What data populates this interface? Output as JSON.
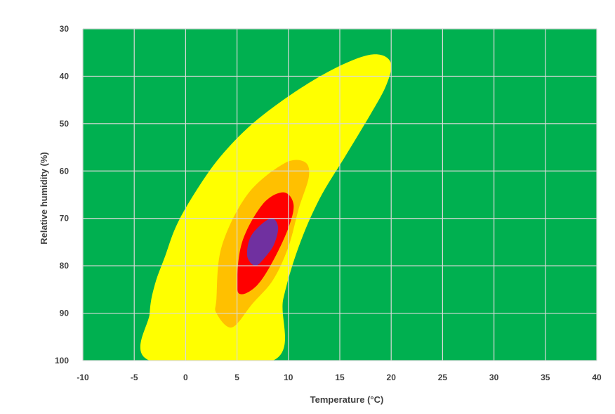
{
  "chart_data": {
    "type": "heatmap",
    "title": "",
    "xlabel": "Temperature (°C)",
    "ylabel": "Relative humidity (%)",
    "xlim": [
      -10,
      40
    ],
    "ylim": [
      30,
      100
    ],
    "y_inverted": true,
    "grid": true,
    "x_ticks": [
      "-10",
      "-5",
      "0",
      "5",
      "10",
      "15",
      "20",
      "25",
      "30",
      "35",
      "40"
    ],
    "y_ticks": [
      "30",
      "40",
      "50",
      "60",
      "70",
      "80",
      "90",
      "100"
    ],
    "background_color": "#00b050",
    "regions": [
      {
        "color": "#ffff00",
        "boundary": [
          [
            -3.5,
            100
          ],
          [
            -3.5,
            90
          ],
          [
            -3,
            84
          ],
          [
            -2,
            78
          ],
          [
            -1,
            72
          ],
          [
            0.5,
            66
          ],
          [
            3,
            58
          ],
          [
            6,
            51
          ],
          [
            9.5,
            45
          ],
          [
            13.5,
            39.5
          ],
          [
            17,
            36
          ],
          [
            19,
            35.5
          ],
          [
            20,
            37.5
          ],
          [
            19.5,
            42
          ],
          [
            18,
            48
          ],
          [
            15.5,
            57
          ],
          [
            13,
            66
          ],
          [
            11,
            76
          ],
          [
            9.5,
            87
          ],
          [
            8.5,
            100
          ]
        ]
      },
      {
        "color": "#ffc000",
        "boundary": [
          [
            3,
            87
          ],
          [
            3.5,
            76
          ],
          [
            6,
            65
          ],
          [
            9.5,
            58.5
          ],
          [
            11.5,
            58
          ],
          [
            12,
            61
          ],
          [
            11,
            68
          ],
          [
            10,
            76
          ],
          [
            8.5,
            83
          ],
          [
            6.5,
            88
          ],
          [
            4.5,
            93
          ],
          [
            3,
            90
          ]
        ]
      },
      {
        "color": "#ff0000",
        "boundary": [
          [
            5,
            84
          ],
          [
            5.5,
            75
          ],
          [
            7.5,
            67
          ],
          [
            9.5,
            64.5
          ],
          [
            10.5,
            67
          ],
          [
            10,
            72
          ],
          [
            8.5,
            79
          ],
          [
            7,
            84
          ],
          [
            5.5,
            86
          ]
        ]
      },
      {
        "color": "#7030a0",
        "boundary": [
          [
            6,
            78
          ],
          [
            6.3,
            74
          ],
          [
            7.5,
            71
          ],
          [
            8.5,
            70
          ],
          [
            9,
            72
          ],
          [
            8.6,
            75.5
          ],
          [
            7.8,
            78
          ],
          [
            6.8,
            80
          ]
        ]
      }
    ]
  }
}
